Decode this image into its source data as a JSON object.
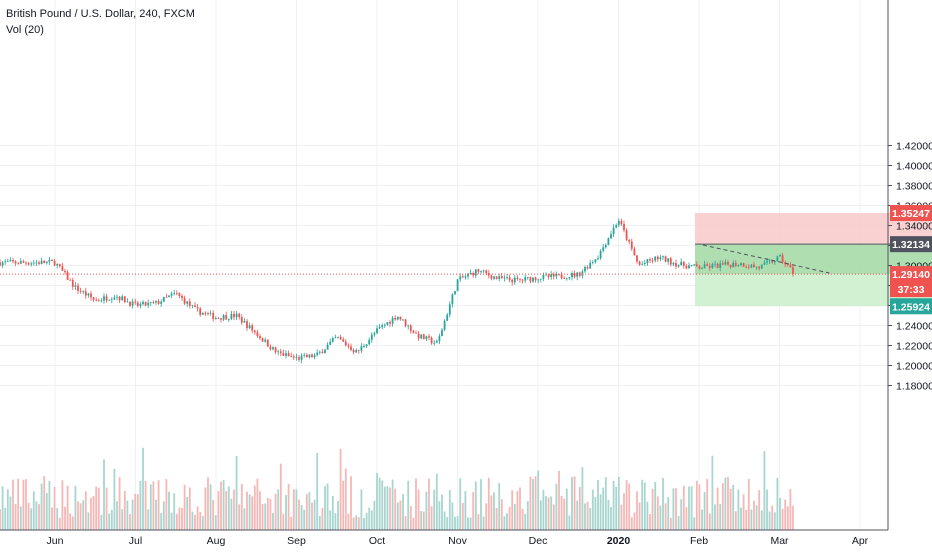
{
  "header": {
    "symbol": "British Pound / U.S. Dollar, 240, FXCM",
    "volume_label": "Vol (20)"
  },
  "colors": {
    "up": "#26a69a",
    "down": "#ef5350",
    "vol_up": "#a8d5cf",
    "vol_down": "#f5b7b5",
    "grid": "#eef0f3",
    "stop_zone": "#f9c9c9",
    "target_zone": "#a6dca8",
    "target_zone_light": "#cdeecd",
    "axis_text": "#131722",
    "price_line": "#ef5350"
  },
  "chart_data": {
    "type": "candlestick",
    "x_ticks": [
      "Jun",
      "Jul",
      "Aug",
      "Sep",
      "Oct",
      "Nov",
      "Dec",
      "2020",
      "Feb",
      "Mar",
      "Apr"
    ],
    "y_ticks": [
      "1.42000",
      "1.40000",
      "1.38000",
      "1.36000",
      "1.34000",
      "1.32000",
      "1.30000",
      "1.28000",
      "1.26000",
      "1.24000",
      "1.22000",
      "1.20000",
      "1.18000"
    ],
    "ylim": [
      1.1655,
      1.4285
    ],
    "price_path_months": [
      5.0,
      5.25,
      5.5,
      5.75,
      6.0,
      6.25,
      6.5,
      6.75,
      7.0,
      7.25,
      7.5,
      7.75,
      8.0,
      8.25,
      8.5,
      8.75,
      9.0,
      9.25,
      9.5,
      9.75,
      10.0,
      10.25,
      10.5,
      10.75,
      11.0,
      11.25,
      11.5,
      11.75,
      12.0,
      12.25,
      12.5,
      12.75,
      13.0,
      13.25,
      13.5,
      13.75,
      14.0,
      14.2
    ],
    "price_path_values": [
      1.303,
      1.278,
      1.265,
      1.27,
      1.26,
      1.262,
      1.272,
      1.255,
      1.248,
      1.25,
      1.232,
      1.213,
      1.207,
      1.21,
      1.228,
      1.213,
      1.235,
      1.25,
      1.23,
      1.222,
      1.285,
      1.295,
      1.287,
      1.285,
      1.288,
      1.289,
      1.291,
      1.31,
      1.346,
      1.3,
      1.308,
      1.301,
      1.298,
      1.3,
      1.302,
      1.298,
      1.308,
      1.291
    ],
    "position": {
      "stop_price": "1.35247",
      "entry_price": "1.32134",
      "target_price": "1.25924",
      "stop_value": 1.35247,
      "entry_value": 1.32134,
      "target_value": 1.25924,
      "start_month": 12.95,
      "end_month": 16.95
    },
    "current_price": {
      "value": 1.2914,
      "label": "1.29140",
      "countdown": "37:33"
    },
    "trend_line_months": [
      13.05,
      14.62
    ],
    "trend_line_values": [
      1.3205,
      1.2925
    ]
  }
}
